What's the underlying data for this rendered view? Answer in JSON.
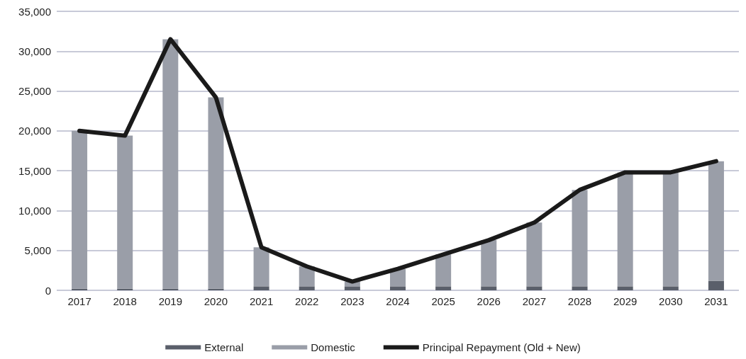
{
  "chart_data": {
    "type": "bar",
    "stacked": true,
    "categories": [
      "2017",
      "2018",
      "2019",
      "2020",
      "2021",
      "2022",
      "2023",
      "2024",
      "2025",
      "2026",
      "2027",
      "2028",
      "2029",
      "2030",
      "2031"
    ],
    "series": [
      {
        "name": "External",
        "color": "#5a5f6a",
        "values": [
          200,
          200,
          200,
          200,
          500,
          500,
          500,
          500,
          500,
          500,
          500,
          500,
          500,
          500,
          1200
        ]
      },
      {
        "name": "Domestic",
        "color": "#9a9ea8",
        "values": [
          19800,
          19200,
          31300,
          24000,
          4900,
          2500,
          600,
          2200,
          4000,
          5800,
          8000,
          12100,
          14300,
          14300,
          15000
        ]
      },
      {
        "name": "Principal Repayment (Old + New)",
        "type": "line",
        "color": "#1a1a1a",
        "marker": "none",
        "line_style": "solid",
        "values": [
          20000,
          19400,
          31500,
          24200,
          5400,
          3000,
          1100,
          2700,
          4500,
          6300,
          8500,
          12600,
          14800,
          14800,
          16200
        ]
      }
    ],
    "ylim": [
      0,
      35000
    ],
    "yticks": [
      0,
      {
        "value": 5000,
        "label": "5,000"
      },
      {
        "value": 10000,
        "label": "10,000"
      },
      {
        "value": 15000,
        "label": "15,000"
      },
      {
        "value": 20000,
        "label": "20,000"
      },
      {
        "value": 25000,
        "label": "25,000"
      },
      {
        "value": 30000,
        "label": "30,000"
      },
      {
        "value": 35000,
        "label": "35,000"
      }
    ],
    "grid": "y",
    "legend": "bottom"
  }
}
